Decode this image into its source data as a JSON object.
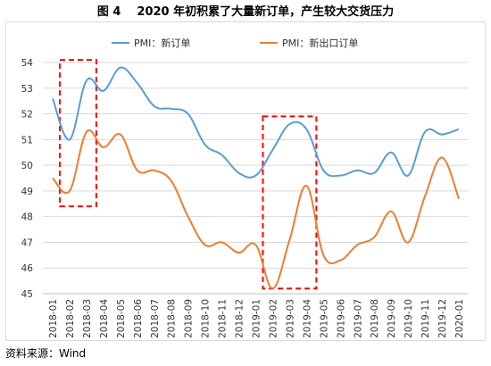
{
  "figure": {
    "number": "图 4",
    "title": "2020 年初积累了大量新订单，产生较大交货压力",
    "source": "资料来源：Wind"
  },
  "colors": {
    "series1": "#5b9bd5",
    "series2": "#ed7d31",
    "highlight": "#ff0000",
    "grid": "#d9d9d9"
  },
  "chart_data": {
    "type": "line",
    "title": "",
    "xlabel": "",
    "ylabel": "",
    "ylim": [
      45,
      54
    ],
    "yticks": [
      45,
      46,
      47,
      48,
      49,
      50,
      51,
      52,
      53,
      54
    ],
    "grid": "horizontal",
    "legend_position": "top",
    "categories": [
      "2018-01",
      "2018-02",
      "2018-03",
      "2018-04",
      "2018-05",
      "2018-06",
      "2018-07",
      "2018-08",
      "2018-09",
      "2018-10",
      "2018-11",
      "2018-12",
      "2019-01",
      "2019-02",
      "2019-03",
      "2019-04",
      "2019-05",
      "2019-06",
      "2019-07",
      "2019-08",
      "2019-09",
      "2019-10",
      "2019-11",
      "2019-12",
      "2020-01"
    ],
    "series": [
      {
        "name": "PMI：新订单",
        "color": "#5b9bd5",
        "values": [
          52.6,
          51.0,
          53.3,
          52.9,
          53.8,
          53.2,
          52.3,
          52.2,
          52.0,
          50.8,
          50.4,
          49.7,
          49.6,
          50.6,
          51.6,
          51.4,
          49.8,
          49.6,
          49.8,
          49.7,
          50.5,
          49.6,
          51.3,
          51.2,
          51.4
        ]
      },
      {
        "name": "PMI：新出口订单",
        "color": "#ed7d31",
        "values": [
          49.5,
          49.0,
          51.3,
          50.7,
          51.2,
          49.8,
          49.8,
          49.4,
          48.0,
          46.9,
          47.0,
          46.6,
          46.9,
          45.2,
          47.1,
          49.2,
          46.5,
          46.3,
          46.9,
          47.2,
          48.2,
          47.0,
          48.8,
          50.3,
          48.7
        ]
      }
    ],
    "highlight_boxes": [
      {
        "from": "2018-02",
        "to": "2018-03",
        "y_top": 54.1,
        "y_bottom": 48.4
      },
      {
        "from": "2019-02",
        "to": "2019-04",
        "y_top": 51.9,
        "y_bottom": 45.2
      }
    ]
  }
}
